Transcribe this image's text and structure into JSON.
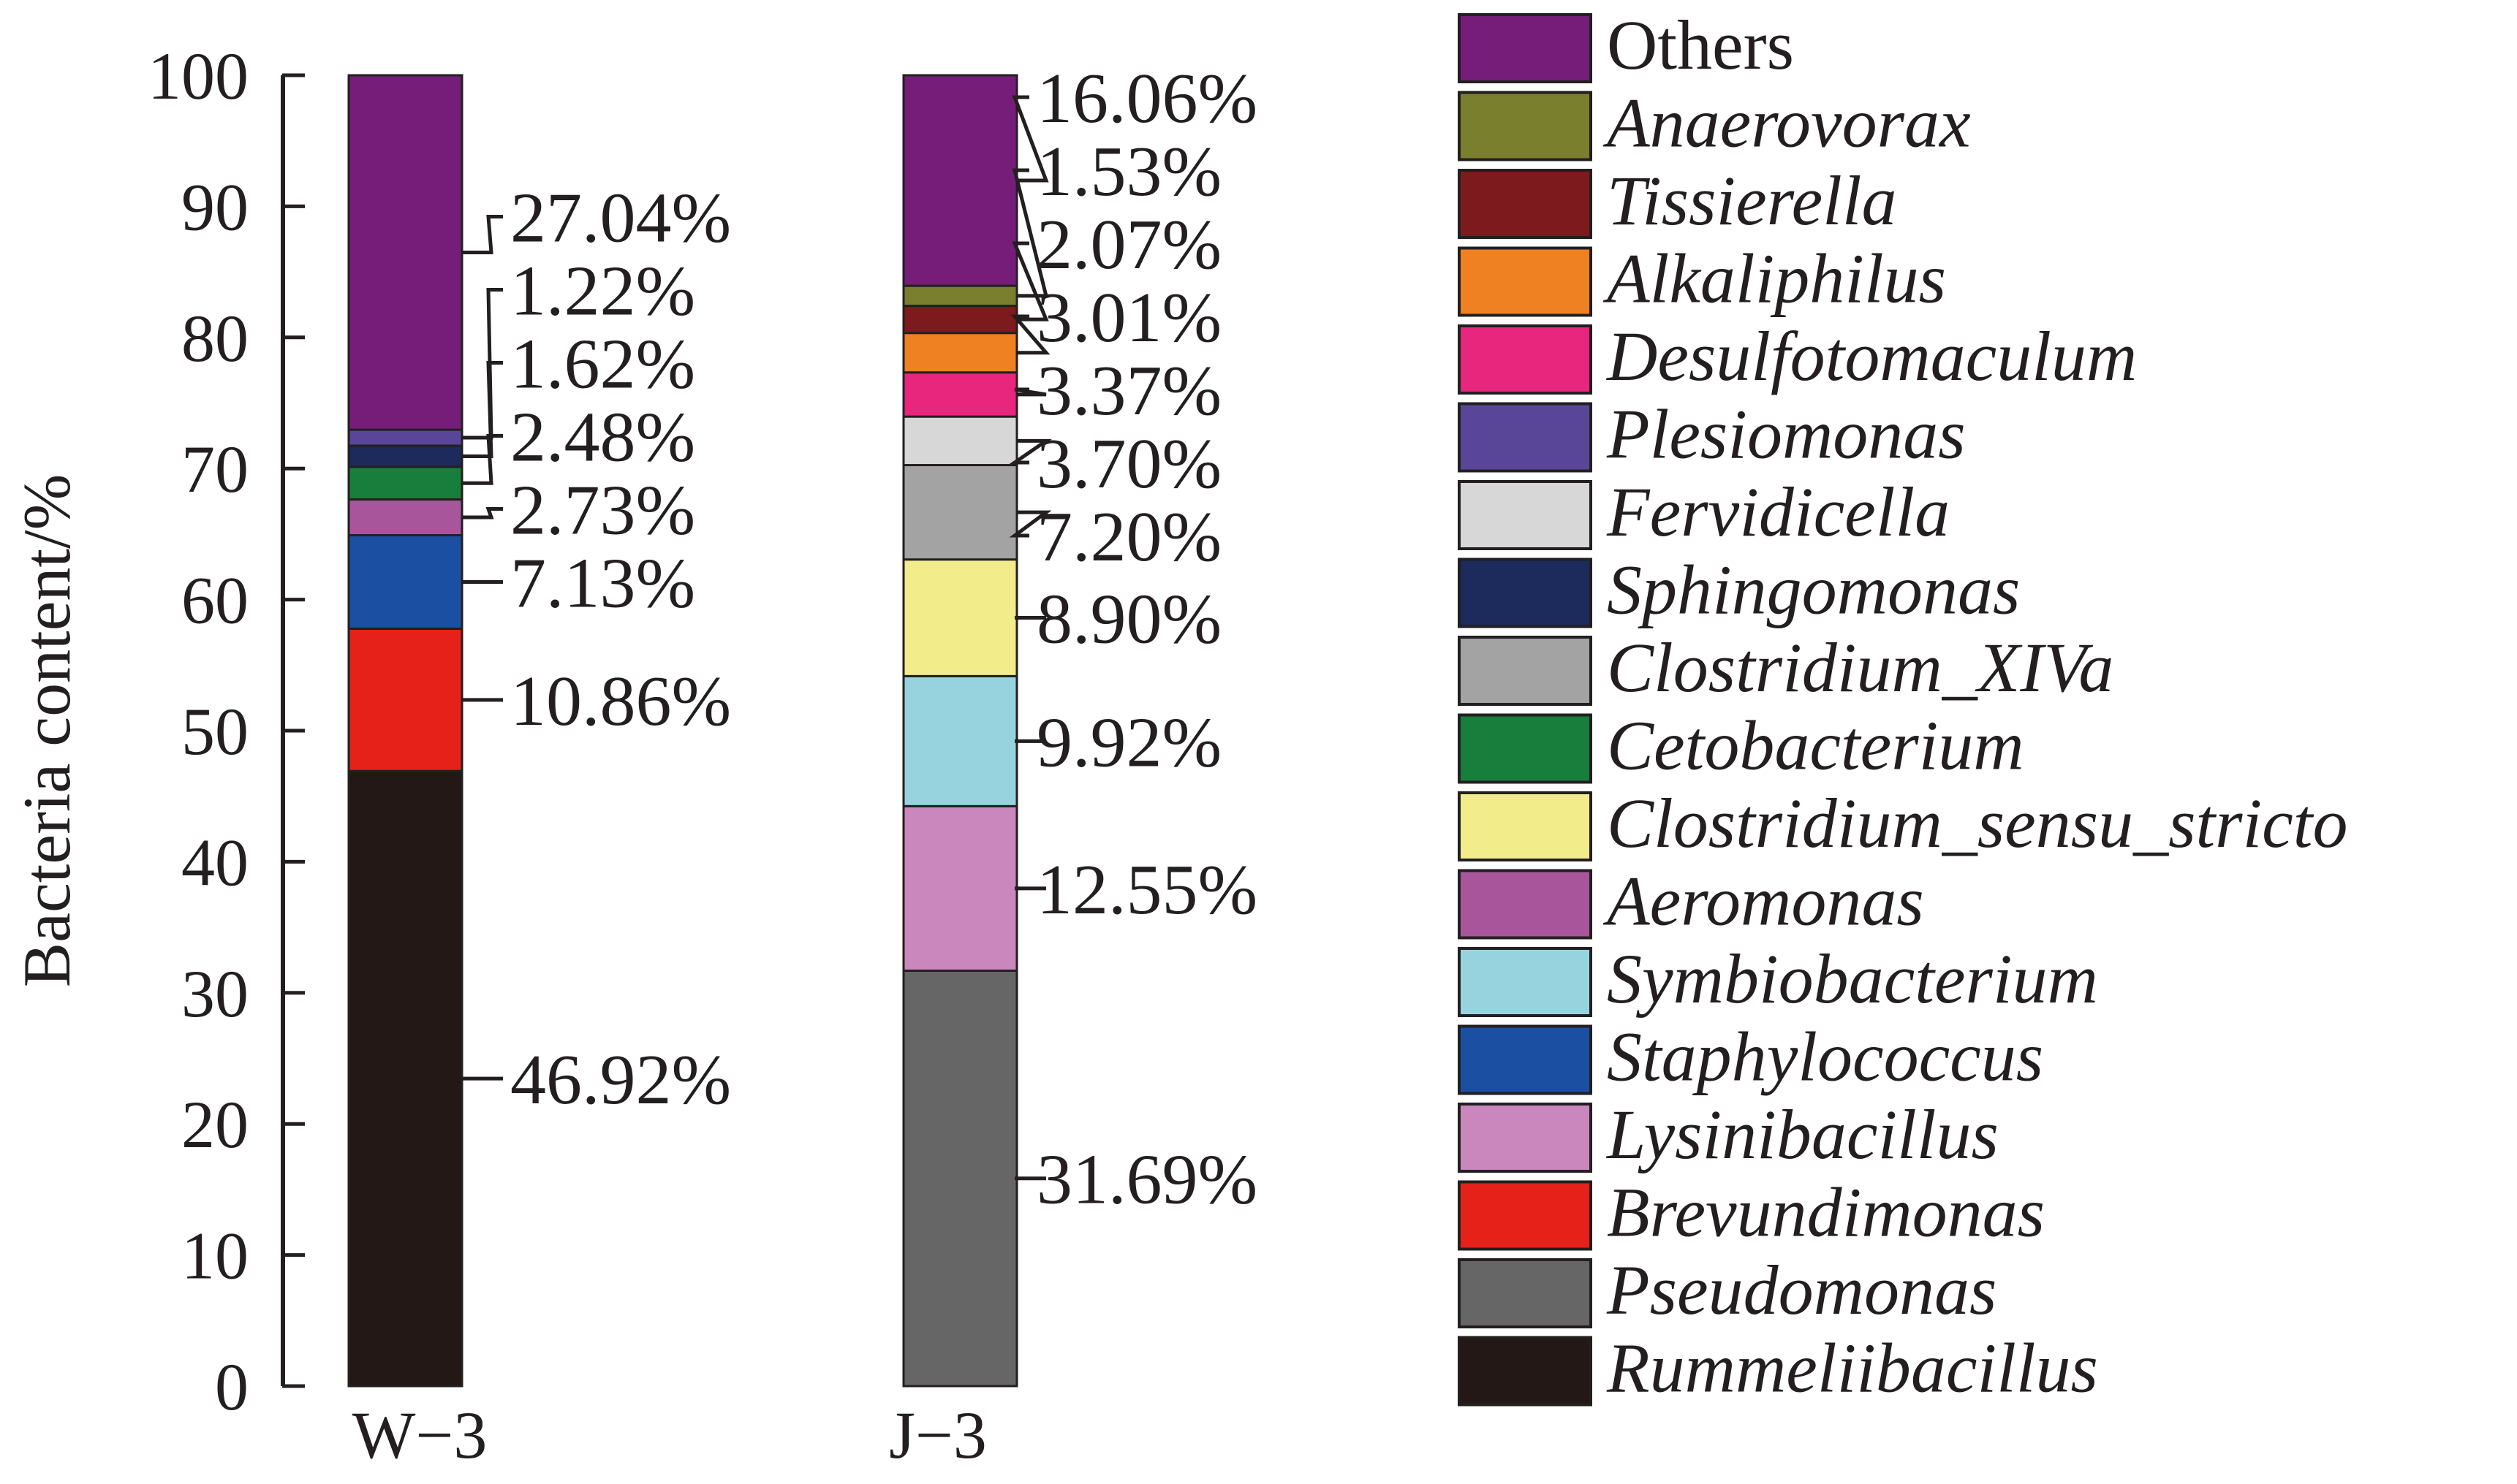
{
  "chart_data": {
    "type": "bar",
    "stacked": true,
    "ylabel": "Bacteria content/%",
    "ylim": [
      0,
      100
    ],
    "yticks": [
      "0",
      "10",
      "20",
      "30",
      "40",
      "50",
      "60",
      "70",
      "80",
      "90",
      "100"
    ],
    "categories": [
      "W−3",
      "J−3"
    ],
    "series": [
      {
        "name": "Rummeliibacillus",
        "color": "#231815",
        "values": [
          46.92,
          0
        ]
      },
      {
        "name": "Pseudomonas",
        "color": "#666666",
        "values": [
          0,
          31.69
        ]
      },
      {
        "name": "Brevundimonas",
        "color": "#e6211a",
        "values": [
          10.86,
          0
        ]
      },
      {
        "name": "Lysinibacillus",
        "color": "#c987bd",
        "values": [
          0,
          12.55
        ]
      },
      {
        "name": "Staphylococcus",
        "color": "#1b4fa2",
        "values": [
          7.13,
          0
        ]
      },
      {
        "name": "Symbiobacterium",
        "color": "#96d3de",
        "values": [
          0,
          9.92
        ]
      },
      {
        "name": "Aeromonas",
        "color": "#a9559c",
        "values": [
          2.73,
          0
        ]
      },
      {
        "name": "Clostridium_sensu_stricto",
        "color": "#f2ed8a",
        "values": [
          0,
          8.9
        ]
      },
      {
        "name": "Cetobacterium",
        "color": "#177e3b",
        "values": [
          2.48,
          0
        ]
      },
      {
        "name": "Clostridium_XIVa",
        "color": "#a3a3a3",
        "values": [
          0,
          7.2
        ]
      },
      {
        "name": "Sphingomonas",
        "color": "#1c2a5c",
        "values": [
          1.62,
          0
        ]
      },
      {
        "name": "Fervidicella",
        "color": "#d7d7d7",
        "values": [
          0,
          3.7
        ]
      },
      {
        "name": "Plesiomonas",
        "color": "#5a4699",
        "values": [
          1.22,
          0
        ]
      },
      {
        "name": "Desulfotomaculum",
        "color": "#e8267d",
        "values": [
          0,
          3.37
        ]
      },
      {
        "name": "Alkaliphilus",
        "color": "#ef8122",
        "values": [
          0,
          3.01
        ]
      },
      {
        "name": "Tissierella",
        "color": "#7c1a1d",
        "values": [
          0,
          2.07
        ]
      },
      {
        "name": "Anaerovorax",
        "color": "#7a7f2e",
        "values": [
          0,
          1.53
        ]
      },
      {
        "name": "Others",
        "color": "#761d79",
        "values": [
          27.04,
          16.06
        ]
      }
    ],
    "bar_labels": [
      [
        "46.92%",
        "10.86%",
        "7.13%",
        "2.73%",
        "2.48%",
        "1.62%",
        "1.22%",
        "27.04%"
      ],
      [
        "31.69%",
        "12.55%",
        "9.92%",
        "8.90%",
        "7.20%",
        "3.70%",
        "3.37%",
        "3.01%",
        "2.07%",
        "1.53%",
        "16.06%"
      ]
    ],
    "legend_order": [
      "Others",
      "Anaerovorax",
      "Tissierella",
      "Alkaliphilus",
      "Desulfotomaculum",
      "Plesiomonas",
      "Fervidicella",
      "Sphingomonas",
      "Clostridium_XIVa",
      "Cetobacterium",
      "Clostridium_sensu_stricto",
      "Aeromonas",
      "Symbiobacterium",
      "Staphylococcus",
      "Lysinibacillus",
      "Brevundimonas",
      "Pseudomonas",
      "Rummeliibacillus"
    ],
    "legend_position": "right",
    "grid": false
  }
}
